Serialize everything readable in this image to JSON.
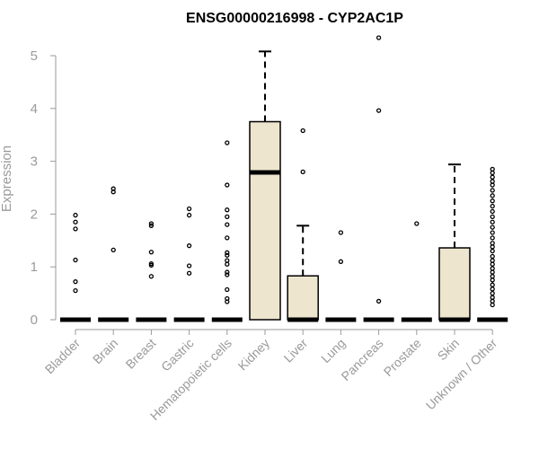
{
  "chart_data": {
    "type": "box",
    "title": "ENSG00000216998 - CYP2AC1P",
    "xlabel": "",
    "ylabel": "Expression",
    "ylim": [
      0,
      5.35
    ],
    "yticks": [
      "0",
      "1",
      "2",
      "3",
      "4",
      "5"
    ],
    "grid": false,
    "box_fill": "#ede5ce",
    "box_stroke": "#000000",
    "axis_color": "#9a9a9a",
    "categories": [
      "Bladder",
      "Brain",
      "Breast",
      "Gastric",
      "Hematopoietic cells",
      "Kidney",
      "Liver",
      "Lung",
      "Pancreas",
      "Prostate",
      "Skin",
      "Unknown / Other"
    ],
    "boxes": [
      {
        "category": "Bladder",
        "q1": 0,
        "median": 0,
        "q3": 0,
        "whisker_low": 0,
        "whisker_high": 0,
        "outliers": [
          0.55,
          0.72,
          1.13,
          1.72,
          1.85,
          1.98
        ]
      },
      {
        "category": "Brain",
        "q1": 0,
        "median": 0,
        "q3": 0,
        "whisker_low": 0,
        "whisker_high": 0,
        "outliers": [
          1.32,
          2.42,
          2.48
        ]
      },
      {
        "category": "Breast",
        "q1": 0,
        "median": 0,
        "q3": 0,
        "whisker_low": 0,
        "whisker_high": 0,
        "outliers": [
          0.82,
          1.03,
          1.06,
          1.28,
          1.78,
          1.82
        ]
      },
      {
        "category": "Gastric",
        "q1": 0,
        "median": 0,
        "q3": 0,
        "whisker_low": 0,
        "whisker_high": 0,
        "outliers": [
          0.88,
          1.02,
          1.4,
          1.98,
          2.1
        ]
      },
      {
        "category": "Hematopoietic cells",
        "q1": 0,
        "median": 0,
        "q3": 0,
        "whisker_low": 0,
        "whisker_high": 0,
        "outliers": [
          0.34,
          0.4,
          0.57,
          0.85,
          0.9,
          1.05,
          1.12,
          1.22,
          1.27,
          1.55,
          1.8,
          1.95,
          2.08,
          2.55,
          3.35
        ]
      },
      {
        "category": "Kidney",
        "q1": 0,
        "median": 2.79,
        "q3": 3.75,
        "whisker_low": 0,
        "whisker_high": 5.08,
        "outliers": []
      },
      {
        "category": "Liver",
        "q1": 0,
        "median": 0,
        "q3": 0.83,
        "whisker_low": 0,
        "whisker_high": 1.78,
        "outliers": [
          2.8,
          3.58
        ]
      },
      {
        "category": "Lung",
        "q1": 0,
        "median": 0,
        "q3": 0,
        "whisker_low": 0,
        "whisker_high": 0,
        "outliers": [
          1.1,
          1.65
        ]
      },
      {
        "category": "Pancreas",
        "q1": 0,
        "median": 0,
        "q3": 0,
        "whisker_low": 0,
        "whisker_high": 0,
        "outliers": [
          0.35,
          3.96,
          5.34
        ]
      },
      {
        "category": "Prostate",
        "q1": 0,
        "median": 0,
        "q3": 0,
        "whisker_low": 0,
        "whisker_high": 0,
        "outliers": [
          1.82
        ]
      },
      {
        "category": "Skin",
        "q1": 0,
        "median": 0,
        "q3": 1.36,
        "whisker_low": 0,
        "whisker_high": 2.94,
        "outliers": []
      },
      {
        "category": "Unknown / Other",
        "q1": 0,
        "median": 0,
        "q3": 0,
        "whisker_low": 0,
        "whisker_high": 0,
        "outliers": [
          0.28,
          0.35,
          0.42,
          0.5,
          0.58,
          0.66,
          0.75,
          0.82,
          0.9,
          0.97,
          1.05,
          1.12,
          1.2,
          1.3,
          1.38,
          1.45,
          1.55,
          1.65,
          1.75,
          1.85,
          1.95,
          2.05,
          2.15,
          2.25,
          2.35,
          2.45,
          2.55,
          2.62,
          2.7,
          2.78,
          2.85
        ]
      }
    ]
  }
}
